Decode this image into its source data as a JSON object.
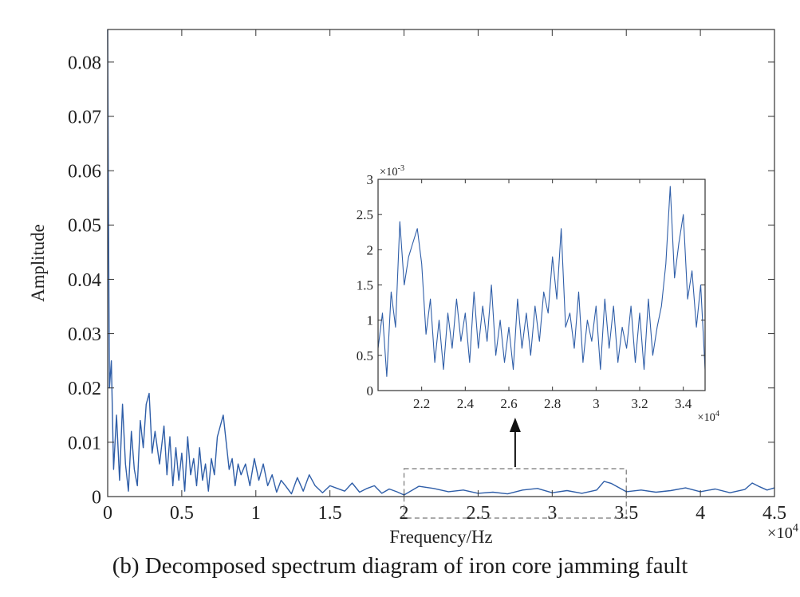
{
  "caption": "(b) Decomposed spectrum diagram of iron core jamming fault",
  "colors": {
    "line": "#2f5ea8",
    "axis": "#333333",
    "text": "#222222",
    "zoom_box": "#777777",
    "arrow": "#111111"
  },
  "chart_data": [
    {
      "id": "main",
      "type": "line",
      "xlabel": "Frequency/Hz",
      "ylabel": "Amplitude",
      "xlim": [
        0,
        45000
      ],
      "ylim": [
        0,
        0.086
      ],
      "xticks": [
        0,
        5000,
        10000,
        15000,
        20000,
        25000,
        30000,
        35000,
        40000,
        45000
      ],
      "xtick_labels": [
        "0",
        "0.5",
        "1",
        "1.5",
        "2",
        "2.5",
        "3",
        "3.5",
        "4",
        "4.5"
      ],
      "x_multiplier": "×10",
      "x_multiplier_exp": "4",
      "yticks": [
        0,
        0.01,
        0.02,
        0.03,
        0.04,
        0.05,
        0.06,
        0.07,
        0.08
      ],
      "ytick_labels": [
        "0",
        "0.01",
        "0.02",
        "0.03",
        "0.04",
        "0.05",
        "0.06",
        "0.07",
        "0.08"
      ],
      "grid": false,
      "x": [
        0,
        50,
        120,
        250,
        400,
        600,
        800,
        1000,
        1200,
        1400,
        1600,
        1800,
        2000,
        2200,
        2400,
        2600,
        2800,
        3000,
        3200,
        3500,
        3800,
        4000,
        4200,
        4400,
        4600,
        4800,
        5000,
        5200,
        5400,
        5600,
        5800,
        6000,
        6200,
        6400,
        6600,
        6800,
        7000,
        7200,
        7400,
        7600,
        7800,
        8000,
        8200,
        8400,
        8600,
        8800,
        9000,
        9300,
        9600,
        9900,
        10200,
        10500,
        10800,
        11100,
        11400,
        11700,
        12000,
        12400,
        12800,
        13200,
        13600,
        14000,
        14500,
        15000,
        15500,
        16000,
        16500,
        17000,
        17500,
        18000,
        18500,
        19000,
        19500,
        20000,
        21000,
        22000,
        23000,
        24000,
        25000,
        26000,
        27000,
        28000,
        29000,
        30000,
        31000,
        32000,
        33000,
        33500,
        34000,
        35000,
        36000,
        37000,
        38000,
        39000,
        40000,
        41000,
        42000,
        43000,
        43500,
        44000,
        44500,
        45000
      ],
      "y": [
        0.086,
        0.055,
        0.02,
        0.025,
        0.005,
        0.015,
        0.003,
        0.017,
        0.006,
        0.001,
        0.012,
        0.005,
        0.002,
        0.014,
        0.009,
        0.017,
        0.019,
        0.008,
        0.012,
        0.006,
        0.013,
        0.004,
        0.011,
        0.002,
        0.009,
        0.003,
        0.008,
        0.001,
        0.011,
        0.004,
        0.007,
        0.002,
        0.009,
        0.003,
        0.006,
        0.001,
        0.007,
        0.004,
        0.011,
        0.013,
        0.015,
        0.01,
        0.005,
        0.007,
        0.002,
        0.006,
        0.004,
        0.006,
        0.002,
        0.007,
        0.003,
        0.006,
        0.002,
        0.004,
        0.0008,
        0.003,
        0.002,
        0.0005,
        0.0035,
        0.001,
        0.004,
        0.002,
        0.0007,
        0.002,
        0.0015,
        0.001,
        0.0025,
        0.0008,
        0.0015,
        0.002,
        0.0006,
        0.0014,
        0.0009,
        0.0003,
        0.0019,
        0.0015,
        0.0009,
        0.0012,
        0.0006,
        0.0008,
        0.0005,
        0.0012,
        0.0015,
        0.0007,
        0.0011,
        0.0006,
        0.0012,
        0.0028,
        0.0024,
        0.0009,
        0.0012,
        0.0008,
        0.0011,
        0.0016,
        0.0009,
        0.0014,
        0.0007,
        0.0013,
        0.0025,
        0.0018,
        0.0012,
        0.0016
      ]
    },
    {
      "id": "inset",
      "type": "line",
      "xlim": [
        20000,
        35000
      ],
      "ylim": [
        0,
        0.003
      ],
      "xticks": [
        22000,
        24000,
        26000,
        28000,
        30000,
        32000,
        34000
      ],
      "xtick_labels": [
        "2.2",
        "2.4",
        "2.6",
        "2.8",
        "3",
        "3.2",
        "3.4"
      ],
      "x_multiplier": "×10",
      "x_multiplier_exp": "4",
      "yticks": [
        0,
        0.0005,
        0.001,
        0.0015,
        0.002,
        0.0025,
        0.003
      ],
      "ytick_labels": [
        "0",
        "0.5",
        "1",
        "1.5",
        "2",
        "2.5",
        "3"
      ],
      "y_multiplier": "×10",
      "y_multiplier_exp": "-3",
      "grid": false,
      "x": [
        20000,
        20200,
        20400,
        20600,
        20800,
        21000,
        21200,
        21400,
        21600,
        21800,
        22000,
        22200,
        22400,
        22600,
        22800,
        23000,
        23200,
        23400,
        23600,
        23800,
        24000,
        24200,
        24400,
        24600,
        24800,
        25000,
        25200,
        25400,
        25600,
        25800,
        26000,
        26200,
        26400,
        26600,
        26800,
        27000,
        27200,
        27400,
        27600,
        27800,
        28000,
        28200,
        28400,
        28600,
        28800,
        29000,
        29200,
        29400,
        29600,
        29800,
        30000,
        30200,
        30400,
        30600,
        30800,
        31000,
        31200,
        31400,
        31600,
        31800,
        32000,
        32200,
        32400,
        32600,
        32800,
        33000,
        33200,
        33400,
        33600,
        33800,
        34000,
        34200,
        34400,
        34600,
        34800,
        35000
      ],
      "y": [
        0.0006,
        0.0011,
        0.0002,
        0.0014,
        0.0009,
        0.0024,
        0.0015,
        0.0019,
        0.0021,
        0.0023,
        0.0018,
        0.0008,
        0.0013,
        0.0004,
        0.001,
        0.0003,
        0.0011,
        0.0006,
        0.0013,
        0.0007,
        0.0011,
        0.0004,
        0.0014,
        0.0006,
        0.0012,
        0.0007,
        0.0015,
        0.0005,
        0.001,
        0.0004,
        0.0009,
        0.0003,
        0.0013,
        0.0006,
        0.0011,
        0.0005,
        0.0012,
        0.0007,
        0.0014,
        0.0011,
        0.0019,
        0.0013,
        0.0023,
        0.0009,
        0.0011,
        0.0006,
        0.0014,
        0.0004,
        0.001,
        0.0007,
        0.0012,
        0.0003,
        0.0013,
        0.0006,
        0.0012,
        0.0004,
        0.0009,
        0.0006,
        0.0012,
        0.0004,
        0.0011,
        0.0003,
        0.0013,
        0.0005,
        0.0009,
        0.0012,
        0.0018,
        0.0029,
        0.0016,
        0.0021,
        0.0025,
        0.0013,
        0.0017,
        0.0009,
        0.0015,
        0.0003
      ]
    }
  ]
}
